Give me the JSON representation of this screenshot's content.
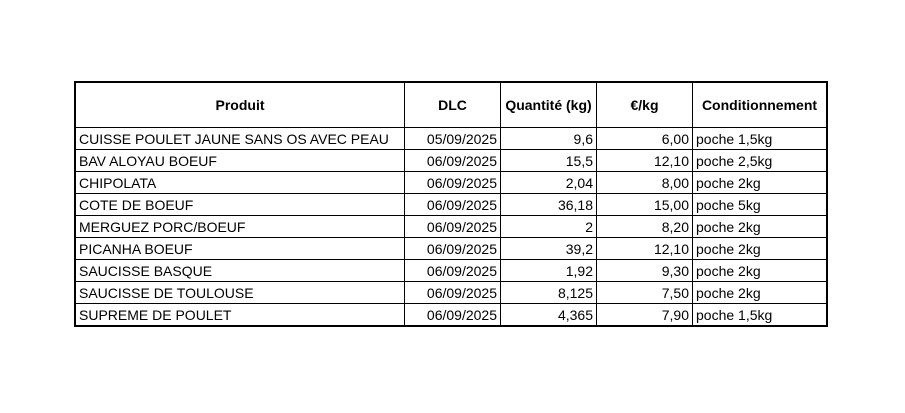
{
  "table": {
    "headers": {
      "produit": "Produit",
      "dlc": "DLC",
      "quantite": "Quantité (kg)",
      "prix": "€/kg",
      "conditionnement": "Conditionnement"
    },
    "rows": [
      {
        "produit": "CUISSE POULET JAUNE SANS OS AVEC PEAU",
        "dlc": "05/09/2025",
        "quantite": "9,6",
        "prix": "6,00",
        "conditionnement": "poche 1,5kg"
      },
      {
        "produit": "BAV ALOYAU BOEUF",
        "dlc": "06/09/2025",
        "quantite": "15,5",
        "prix": "12,10",
        "conditionnement": "poche 2,5kg"
      },
      {
        "produit": "CHIPOLATA",
        "dlc": "06/09/2025",
        "quantite": "2,04",
        "prix": "8,00",
        "conditionnement": "poche 2kg"
      },
      {
        "produit": "COTE DE BOEUF",
        "dlc": "06/09/2025",
        "quantite": "36,18",
        "prix": "15,00",
        "conditionnement": "poche 5kg"
      },
      {
        "produit": "MERGUEZ PORC/BOEUF",
        "dlc": "06/09/2025",
        "quantite": "2",
        "prix": "8,20",
        "conditionnement": "poche 2kg"
      },
      {
        "produit": "PICANHA BOEUF",
        "dlc": "06/09/2025",
        "quantite": "39,2",
        "prix": "12,10",
        "conditionnement": "poche 2kg"
      },
      {
        "produit": "SAUCISSE BASQUE",
        "dlc": "06/09/2025",
        "quantite": "1,92",
        "prix": "9,30",
        "conditionnement": "poche 2kg"
      },
      {
        "produit": "SAUCISSE DE TOULOUSE",
        "dlc": "06/09/2025",
        "quantite": "8,125",
        "prix": "7,50",
        "conditionnement": "poche 2kg"
      },
      {
        "produit": "SUPREME DE POULET",
        "dlc": "06/09/2025",
        "quantite": "4,365",
        "prix": "7,90",
        "conditionnement": "poche 1,5kg"
      }
    ]
  }
}
